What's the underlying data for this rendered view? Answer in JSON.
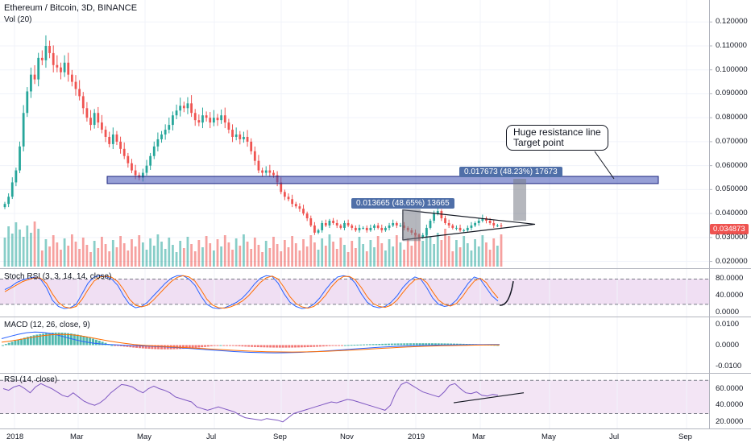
{
  "chart_data": [
    {
      "type": "candlestick",
      "title": "Ethereum / Bitcoin, 3D, BINANCE",
      "volume_label": "Vol (20)",
      "price_axis": [
        "0.120000",
        "0.110000",
        "0.100000",
        "0.090000",
        "0.080000",
        "0.070000",
        "0.060000",
        "0.050000",
        "0.040000",
        "0.030000",
        "0.020000"
      ],
      "ylim": [
        0.0185,
        0.1285
      ],
      "last_price": "0.034873",
      "x_ticks": [
        "2018",
        "Mar",
        "May",
        "Jul",
        "Sep",
        "Nov",
        "2019",
        "Mar",
        "May",
        "Jul",
        "Sep"
      ],
      "closes": [
        0.044,
        0.047,
        0.053,
        0.058,
        0.068,
        0.082,
        0.091,
        0.098,
        0.096,
        0.105,
        0.104,
        0.11,
        0.107,
        0.102,
        0.101,
        0.099,
        0.103,
        0.098,
        0.095,
        0.092,
        0.089,
        0.084,
        0.08,
        0.077,
        0.082,
        0.078,
        0.075,
        0.072,
        0.069,
        0.073,
        0.07,
        0.067,
        0.064,
        0.061,
        0.058,
        0.056,
        0.055,
        0.057,
        0.06,
        0.064,
        0.068,
        0.071,
        0.073,
        0.075,
        0.077,
        0.081,
        0.083,
        0.085,
        0.084,
        0.086,
        0.082,
        0.079,
        0.078,
        0.081,
        0.08,
        0.078,
        0.08,
        0.079,
        0.081,
        0.078,
        0.075,
        0.072,
        0.073,
        0.071,
        0.072,
        0.07,
        0.066,
        0.062,
        0.058,
        0.057,
        0.058,
        0.057,
        0.056,
        0.053,
        0.049,
        0.047,
        0.046,
        0.044,
        0.043,
        0.042,
        0.04,
        0.038,
        0.035,
        0.032,
        0.033,
        0.036,
        0.035,
        0.037,
        0.036,
        0.035,
        0.034,
        0.036,
        0.035,
        0.034,
        0.033,
        0.034,
        0.034,
        0.033,
        0.034,
        0.035,
        0.034,
        0.033,
        0.034,
        0.035,
        0.036,
        0.035,
        0.035,
        0.034,
        0.033,
        0.032,
        0.031,
        0.03,
        0.031,
        0.034,
        0.037,
        0.04,
        0.041,
        0.038,
        0.036,
        0.035,
        0.034,
        0.034,
        0.033,
        0.033,
        0.034,
        0.035,
        0.036,
        0.037,
        0.038,
        0.037,
        0.036,
        0.035,
        0.035,
        0.0349
      ],
      "annotations": [
        {
          "text": "0.017673 (48.23%) 17673"
        },
        {
          "text": "0.013665 (48.65%) 13665"
        },
        {
          "text": "Huge resistance line\nTarget point"
        }
      ]
    },
    {
      "type": "line",
      "title": "Stoch RSI (3, 3, 14, 14, close)",
      "y_axis": [
        "80.0000",
        "40.0000",
        "0.0000"
      ],
      "ylim": [
        -5,
        100
      ],
      "series": [
        {
          "color": "#2962ff",
          "values": [
            55,
            62,
            72,
            78,
            82,
            85,
            80,
            60,
            30,
            15,
            10,
            12,
            20,
            45,
            70,
            85,
            88,
            86,
            80,
            65,
            40,
            20,
            12,
            15,
            25,
            40,
            55,
            70,
            82,
            88,
            88,
            80,
            65,
            40,
            20,
            12,
            10,
            12,
            18,
            25,
            35,
            50,
            68,
            82,
            88,
            86,
            70,
            45,
            25,
            15,
            10,
            12,
            20,
            35,
            55,
            72,
            85,
            88,
            85,
            70,
            45,
            25,
            15,
            12,
            15,
            25,
            40,
            60,
            75,
            85,
            80,
            60,
            35,
            20,
            15,
            18,
            30,
            50,
            70,
            85,
            80,
            60,
            40,
            28
          ]
        },
        {
          "color": "#ff6d00",
          "values": [
            50,
            58,
            66,
            74,
            79,
            83,
            82,
            70,
            45,
            25,
            14,
            11,
            15,
            32,
            55,
            75,
            85,
            87,
            84,
            74,
            55,
            32,
            18,
            14,
            18,
            30,
            45,
            60,
            74,
            84,
            88,
            85,
            75,
            55,
            32,
            18,
            12,
            11,
            14,
            20,
            28,
            40,
            56,
            72,
            83,
            87,
            80,
            60,
            38,
            22,
            14,
            11,
            15,
            26,
            42,
            62,
            77,
            86,
            86,
            78,
            60,
            38,
            22,
            15,
            13,
            18,
            30,
            48,
            65,
            78,
            82,
            72,
            50,
            30,
            20,
            16,
            22,
            38,
            58,
            75,
            82,
            72,
            52,
            35
          ]
        }
      ]
    },
    {
      "type": "bar",
      "title": "MACD (12, 26, close, 9)",
      "y_axis": [
        "0.0100",
        "0.0000",
        "-0.0100"
      ],
      "ylim": [
        -0.0125,
        0.0125
      ]
    },
    {
      "type": "line",
      "title": "RSI (14, close)",
      "y_axis": [
        "60.0000",
        "40.0000",
        "20.0000"
      ],
      "ylim": [
        14,
        76
      ],
      "series": [
        {
          "color": "#7e57c2",
          "values": [
            60,
            58,
            62,
            64,
            60,
            55,
            62,
            66,
            63,
            60,
            56,
            52,
            50,
            55,
            50,
            45,
            42,
            40,
            43,
            48,
            55,
            60,
            65,
            64,
            62,
            58,
            55,
            60,
            63,
            60,
            58,
            55,
            50,
            48,
            46,
            44,
            38,
            36,
            34,
            36,
            38,
            36,
            34,
            32,
            28,
            25,
            24,
            23,
            22,
            24,
            23,
            22,
            20,
            25,
            30,
            32,
            34,
            36,
            38,
            40,
            42,
            44,
            43,
            45,
            47,
            46,
            44,
            42,
            40,
            38,
            36,
            34,
            40,
            55,
            65,
            68,
            64,
            60,
            56,
            54,
            52,
            50,
            56,
            64,
            66,
            60,
            55,
            54,
            56,
            52,
            51,
            53,
            52
          ]
        }
      ]
    }
  ]
}
